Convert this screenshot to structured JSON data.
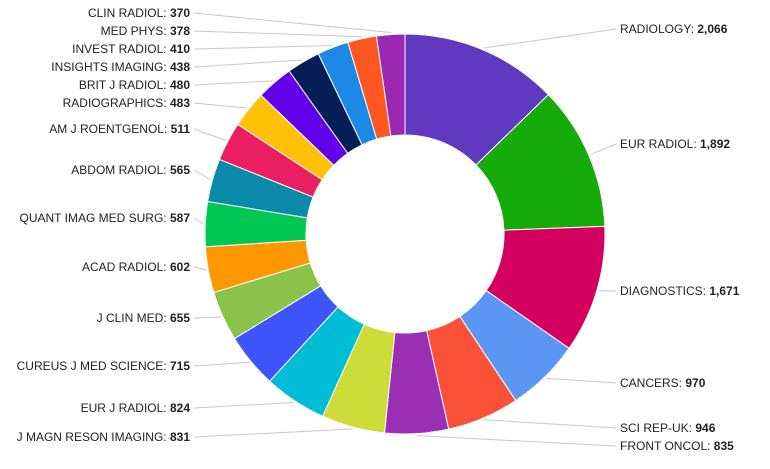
{
  "chart_data": {
    "type": "pie",
    "donut": true,
    "title": "",
    "categories": [
      "RADIOLOGY",
      "EUR RADIOL",
      "DIAGNOSTICS",
      "CANCERS",
      "SCI REP-UK",
      "FRONT ONCOL",
      "J MAGN RESON IMAGING",
      "EUR J RADIOL",
      "CUREUS J MED SCIENCE",
      "J CLIN MED",
      "ACAD RADIOL",
      "QUANT IMAG MED SURG",
      "ABDOM RADIOL",
      "AM J ROENTGENOL",
      "RADIOGRAPHICS",
      "BRIT J RADIOL",
      "INSIGHTS IMAGING",
      "INVEST RADIOL",
      "MED PHYS",
      "CLIN RADIOL"
    ],
    "values": [
      2066,
      1892,
      1671,
      970,
      946,
      835,
      831,
      824,
      715,
      655,
      602,
      587,
      565,
      511,
      483,
      480,
      438,
      410,
      378,
      370
    ],
    "value_labels": [
      "2,066",
      "1,892",
      "1,671",
      "970",
      "946",
      "835",
      "831",
      "824",
      "715",
      "655",
      "602",
      "587",
      "565",
      "511",
      "483",
      "480",
      "438",
      "410",
      "378",
      "370"
    ],
    "colors": [
      "#6138c0",
      "#17aa0b",
      "#d4005f",
      "#5b96f5",
      "#fc5139",
      "#9a2fb3",
      "#cddc39",
      "#00bcd4",
      "#3d55fa",
      "#8bc34a",
      "#ff9800",
      "#00c853",
      "#0a8aa8",
      "#e91e63",
      "#ffc107",
      "#6200ea",
      "#051e56",
      "#1e88e5",
      "#ff5722",
      "#9c27b0"
    ],
    "legend": "none"
  }
}
